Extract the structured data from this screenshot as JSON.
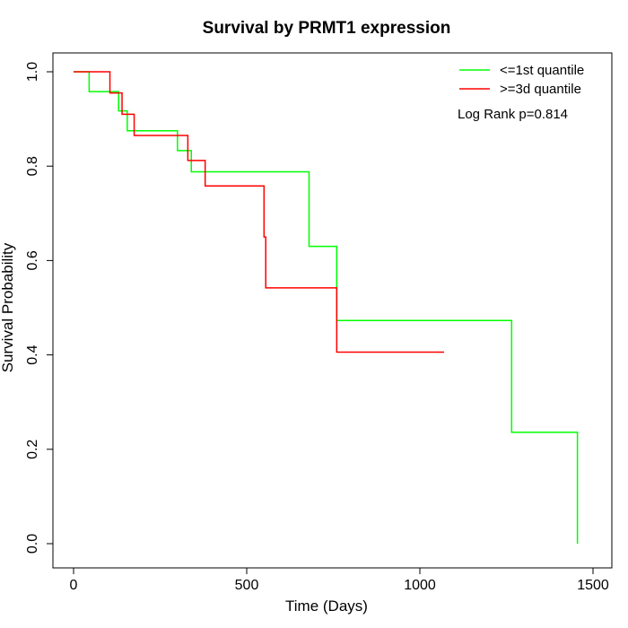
{
  "chart_data": {
    "type": "line",
    "subtype": "step",
    "title": "Survival by PRMT1 expression",
    "xlabel": "Time (Days)",
    "ylabel": "Survival Probability",
    "xlim": [
      0,
      1500
    ],
    "ylim": [
      0,
      1
    ],
    "xticks": [
      0,
      500,
      1000,
      1500
    ],
    "yticks": [
      0.0,
      0.2,
      0.4,
      0.6,
      0.8,
      1.0
    ],
    "xtick_labels": [
      "0",
      "500",
      "1000",
      "1500"
    ],
    "ytick_labels": [
      "0.0",
      "0.2",
      "0.4",
      "0.6",
      "0.8",
      "1.0"
    ],
    "grid": false,
    "legend_position": "top-right",
    "annotation": "Log Rank p=0.814",
    "series": [
      {
        "name": "<=1st quantile",
        "color": "#00ff00",
        "x": [
          0,
          45,
          130,
          155,
          300,
          340,
          355,
          680,
          760,
          1265,
          1455,
          1455
        ],
        "y": [
          1.0,
          0.958,
          0.917,
          0.875,
          0.833,
          0.788,
          0.788,
          0.63,
          0.473,
          0.236,
          0.0,
          0.0
        ]
      },
      {
        "name": ">=3d quantile",
        "color": "#ff0000",
        "x": [
          0,
          105,
          140,
          175,
          330,
          380,
          550,
          555,
          760,
          1070
        ],
        "y": [
          1.0,
          0.955,
          0.91,
          0.865,
          0.812,
          0.758,
          0.65,
          0.542,
          0.406,
          0.406
        ]
      }
    ]
  }
}
